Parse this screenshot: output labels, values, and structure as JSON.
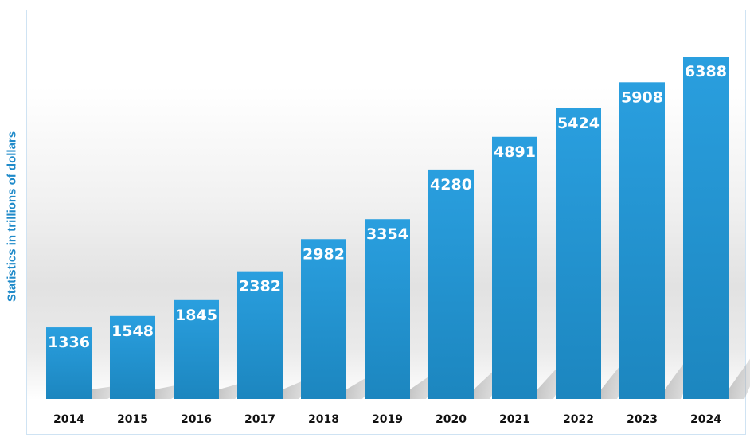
{
  "chart_data": {
    "type": "bar",
    "title": "",
    "xlabel": "",
    "ylabel": "Statistics in trillions of dollars",
    "categories": [
      "2014",
      "2015",
      "2016",
      "2017",
      "2018",
      "2019",
      "2020",
      "2021",
      "2022",
      "2023",
      "2024"
    ],
    "values": [
      1336,
      1548,
      1845,
      2382,
      2982,
      3354,
      4280,
      4891,
      5424,
      5908,
      6388
    ],
    "ylim": [
      0,
      7000
    ],
    "grid": false,
    "legend": "none",
    "bar_color": "#2497d6"
  }
}
